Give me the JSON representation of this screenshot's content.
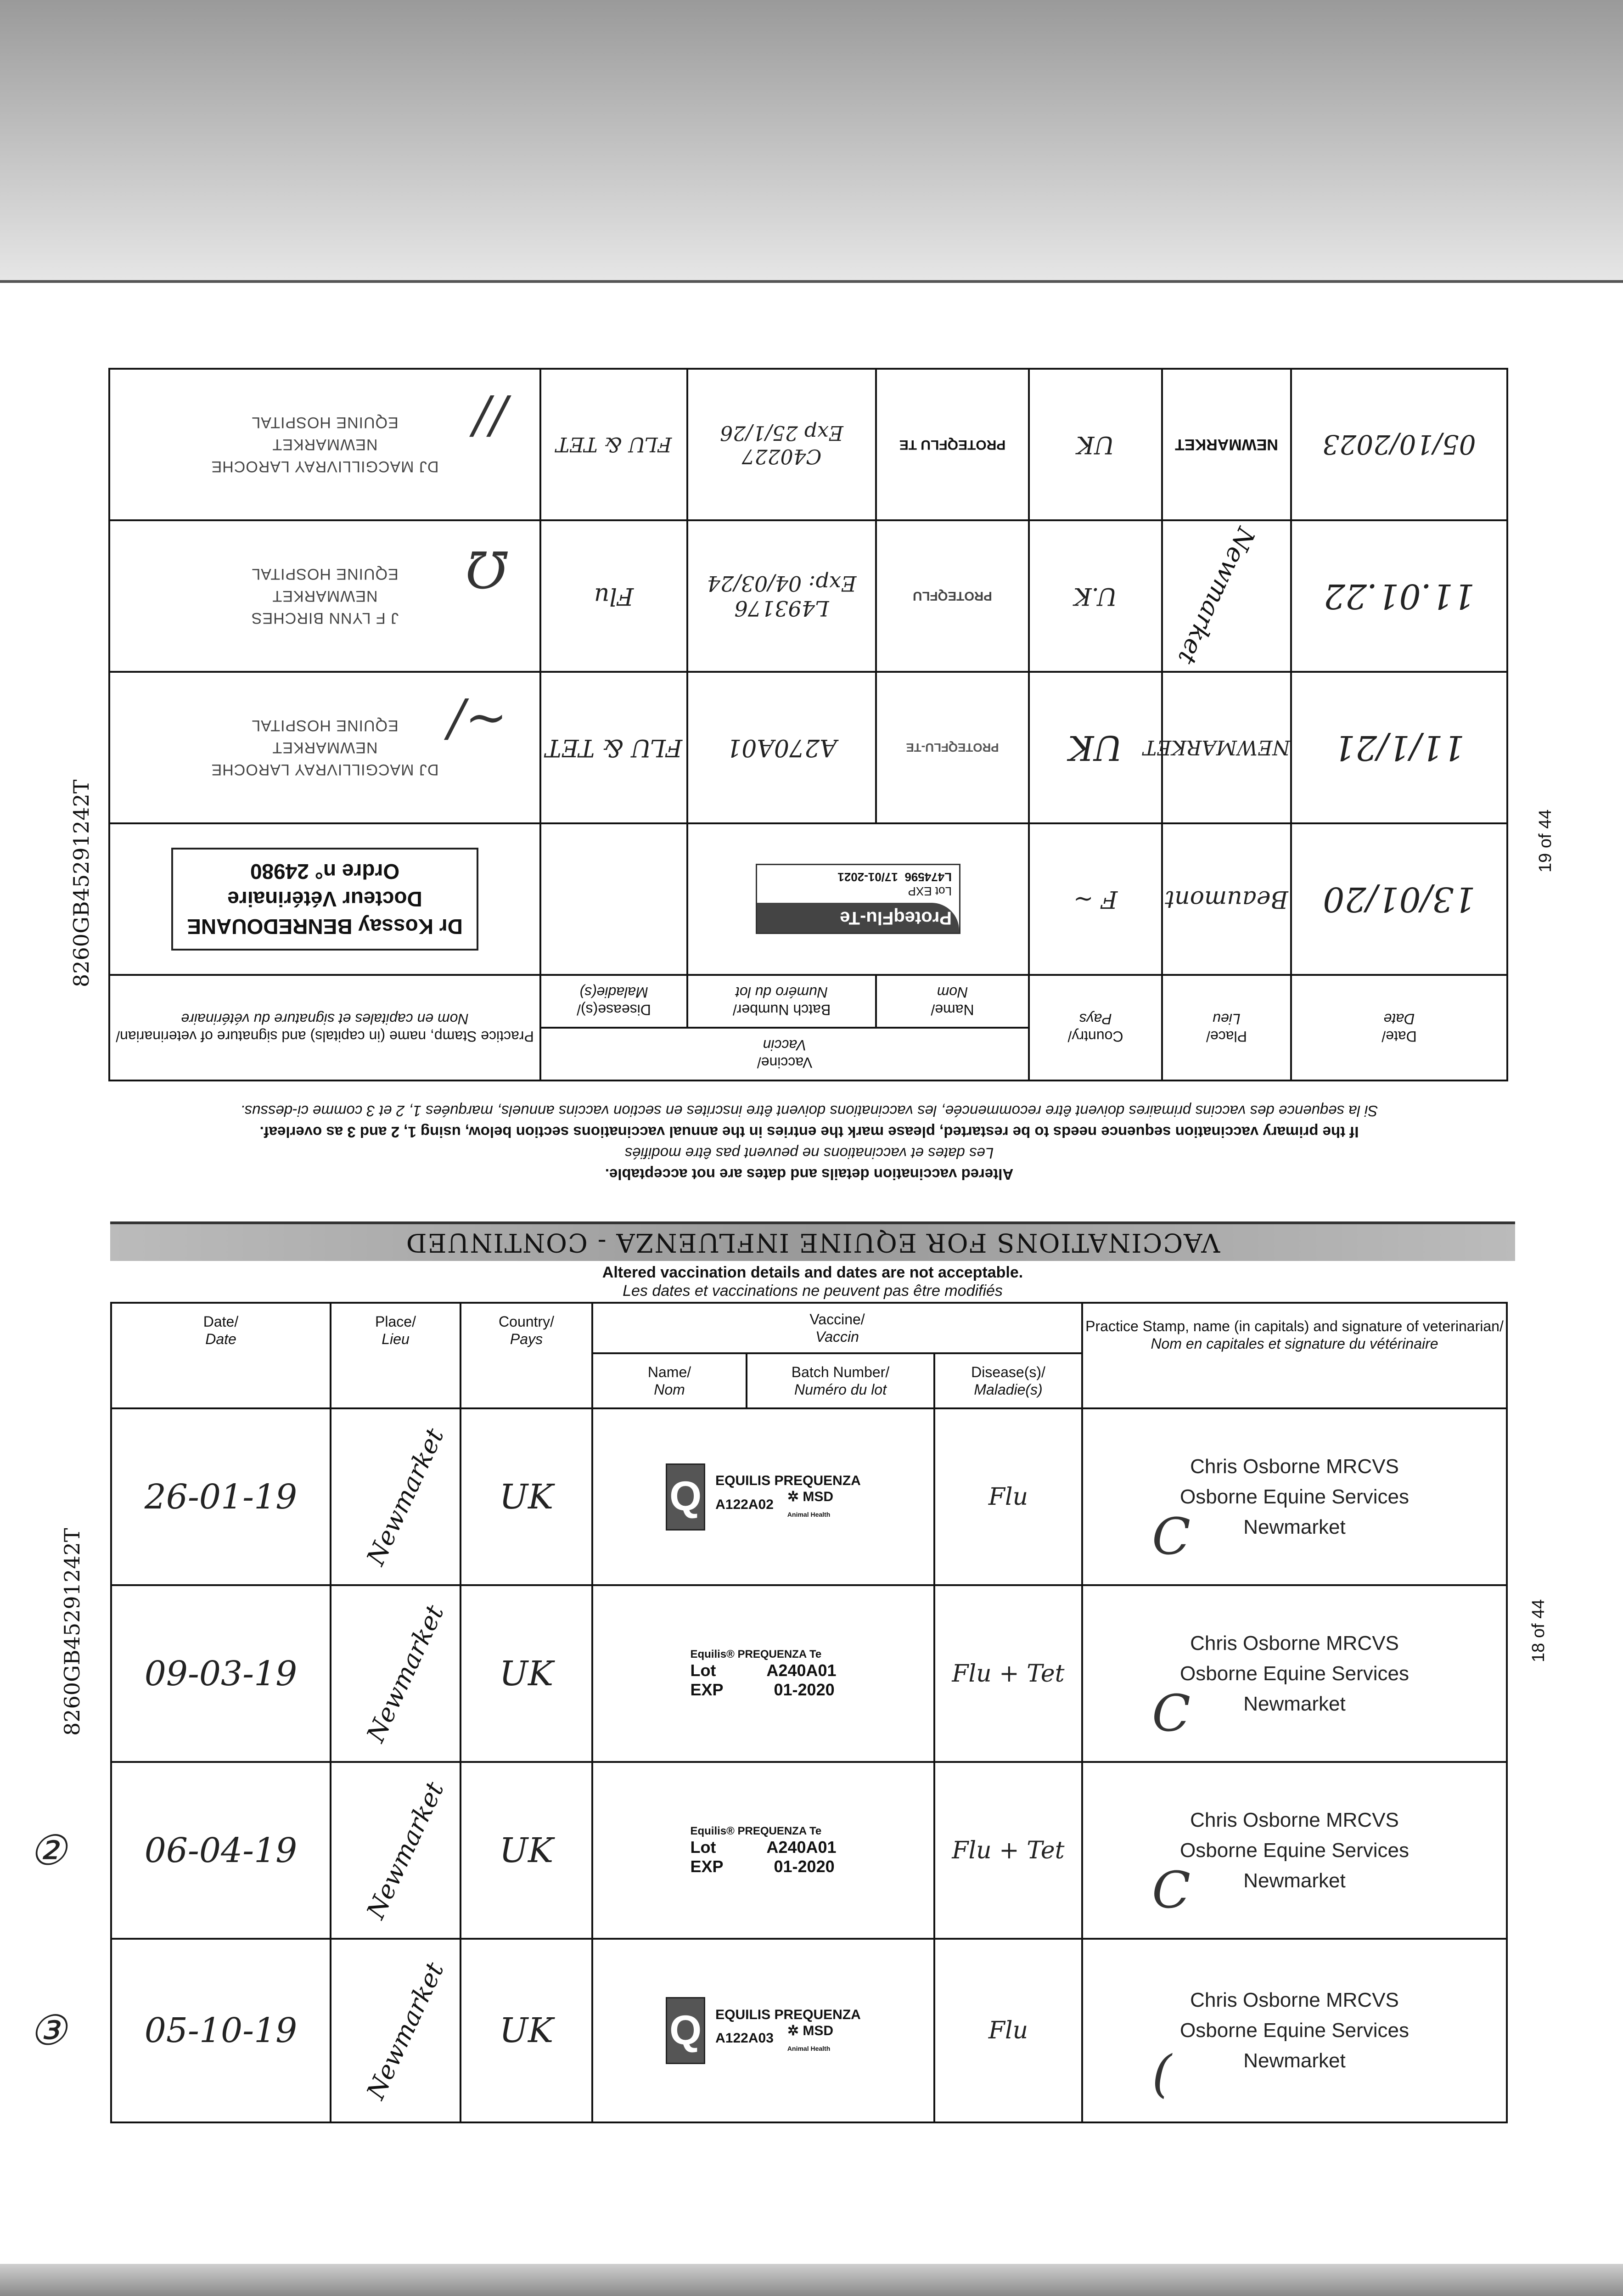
{
  "page_ids": {
    "upper_side_id": "8260GB45291242T",
    "lower_side_id": "8260GB45291242T",
    "upper_page": "19 of 44",
    "lower_page": "18 of 44"
  },
  "banner_title": "VACCINATIONS FOR EQUINE INFLUENZA - CONTINUED",
  "notice": {
    "en": "Altered vaccination details and dates are not acceptable.",
    "fr": "Les dates et vaccinations ne peuvent pas être modifiés",
    "restart_en": "If the primary vaccination sequence needs to be restarted, please mark the entries in the annual vaccinations section below, using 1, 2 and 3 as overleaf.",
    "restart_fr": "Si la sequence des vaccins primaires doivent être recommencée, les vaccinations doivent être inscrites en section vaccins annuels, marquées 1, 2 et 3 comme ci-dessus."
  },
  "headers": {
    "date": "Date/",
    "date_fr": "Date",
    "place": "Place/",
    "place_fr": "Lieu",
    "country": "Country/",
    "country_fr": "Pays",
    "vaccine": "Vaccine/",
    "vaccine_fr": "Vaccin",
    "name": "Name/",
    "name_fr": "Nom",
    "batch": "Batch Number/",
    "batch_fr": "Numéro du lot",
    "disease": "Disease(s)/",
    "disease_fr": "Maladie(s)",
    "practice": "Practice Stamp, name (in capitals) and signature of veterinarian/",
    "practice_fr": "Nom en capitales et signature du vétérinaire"
  },
  "upper_rows": [
    {
      "date": "13/01/20",
      "place": "Beaumont",
      "country": "F ~",
      "sticker_brand": "ProteqFlu-Te",
      "lot_label": "Lot",
      "exp_label": "EXP",
      "lot": "L474596",
      "exp": "17/01-2021",
      "disease": "",
      "stamp": [
        "Dr Kossay BENREDOUANE",
        "Docteur Vétérinaire",
        "Ordre n° 24980"
      ]
    },
    {
      "date": "11/1/21",
      "place": "NEWMARKET",
      "country": "UK",
      "name": "PROTEQFLU-TE",
      "batch": "A270A01",
      "disease": "FLU & TET",
      "stamp": [
        "DJ MACGILLIVRAY LAROCHE",
        "NEWMARKET",
        "EQUINE HOSPITAL"
      ]
    },
    {
      "date": "11.01.22",
      "place": "Newmarket",
      "country": "U.K",
      "name": "PROTEQFLU",
      "batch": "L493176",
      "exp": "Exp: 04/03/24",
      "disease": "Flu",
      "stamp": [
        "J F LYNN BIRCHES",
        "NEWMARKET",
        "EQUINE HOSPITAL"
      ]
    },
    {
      "date": "05/10/2023",
      "place": "NEWMARKET",
      "country": "UK",
      "name": "PROTEQFLU TE",
      "batch": "C40227",
      "exp": "Exp 25/1/26",
      "disease": "FLU & TET",
      "stamp": [
        "DJ MACGILLIVRAY LAROCHE",
        "NEWMARKET",
        "EQUINE HOSPITAL"
      ]
    }
  ],
  "lower_rows": [
    {
      "marker": "",
      "date": "26-01-19",
      "place": "Newmarket",
      "country": "UK",
      "vaccine_name": "EQUILIS PREQUENZA",
      "batch": "A122A02",
      "maker": "MSD",
      "maker_sub": "Animal Health",
      "disease": "Flu",
      "stamp": [
        "Chris Osborne MRCVS",
        "Osborne Equine Services",
        "Newmarket"
      ]
    },
    {
      "marker": "",
      "date": "09-03-19",
      "place": "Newmarket",
      "country": "UK",
      "vaccine_name": "Equilis® PREQUENZA Te",
      "lot_label": "Lot",
      "exp_label": "EXP",
      "batch": "A240A01",
      "exp": "01-2020",
      "disease": "Flu + Tet",
      "stamp": [
        "Chris Osborne MRCVS",
        "Osborne Equine Services",
        "Newmarket"
      ]
    },
    {
      "marker": "②",
      "date": "06-04-19",
      "place": "Newmarket",
      "country": "UK",
      "vaccine_name": "Equilis® PREQUENZA Te",
      "lot_label": "Lot",
      "exp_label": "EXP",
      "batch": "A240A01",
      "exp": "01-2020",
      "disease": "Flu + Tet",
      "stamp": [
        "Chris Osborne MRCVS",
        "Osborne Equine Services",
        "Newmarket"
      ]
    },
    {
      "marker": "③",
      "date": "05-10-19",
      "place": "Newmarket",
      "country": "UK",
      "vaccine_name": "EQUILIS PREQUENZA",
      "batch": "A122A03",
      "maker": "MSD",
      "maker_sub": "Animal Health",
      "disease": "Flu",
      "stamp": [
        "Chris Osborne MRCVS",
        "Osborne Equine Services",
        "Newmarket"
      ]
    }
  ]
}
